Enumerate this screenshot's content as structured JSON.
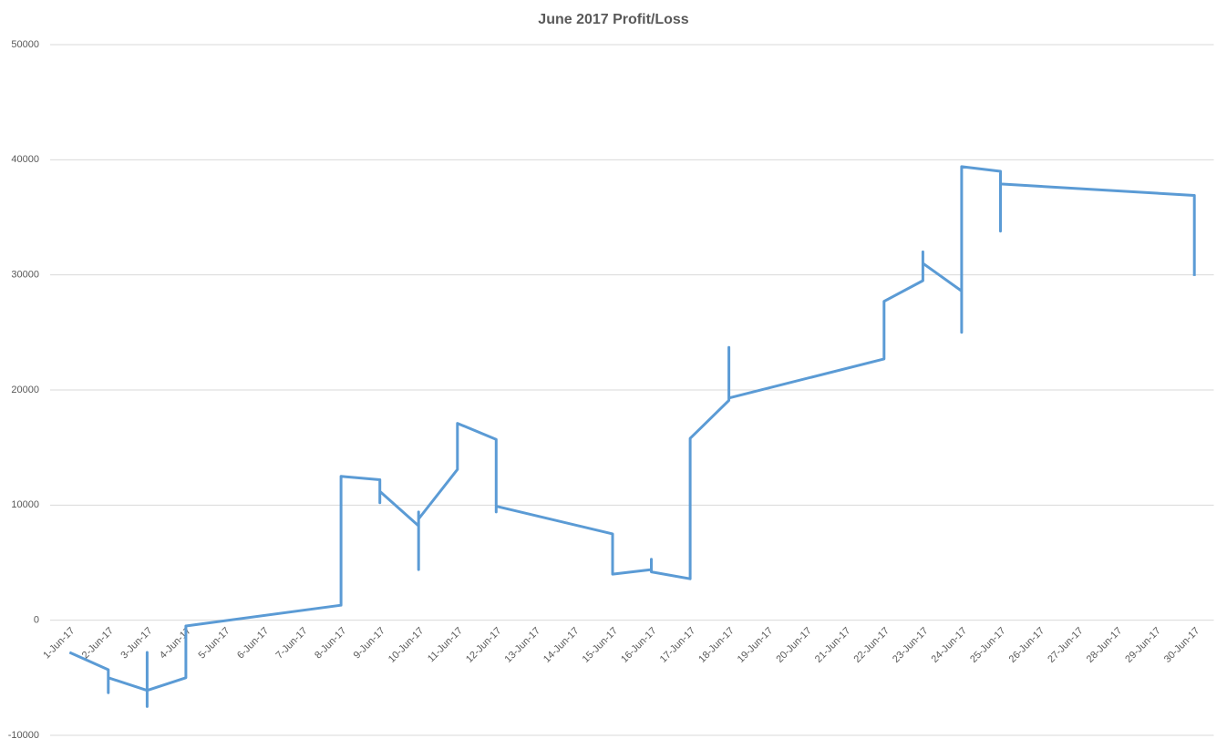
{
  "chart_data": {
    "type": "line",
    "title": "June 2017 Profit/Loss",
    "categories": [
      "1-Jun-17",
      "2-Jun-17",
      "3-Jun-17",
      "4-Jun-17",
      "5-Jun-17",
      "6-Jun-17",
      "7-Jun-17",
      "8-Jun-17",
      "9-Jun-17",
      "10-Jun-17",
      "11-Jun-17",
      "12-Jun-17",
      "13-Jun-17",
      "14-Jun-17",
      "15-Jun-17",
      "16-Jun-17",
      "17-Jun-17",
      "18-Jun-17",
      "19-Jun-17",
      "20-Jun-17",
      "21-Jun-17",
      "22-Jun-17",
      "23-Jun-17",
      "24-Jun-17",
      "25-Jun-17",
      "26-Jun-17",
      "27-Jun-17",
      "28-Jun-17",
      "29-Jun-17",
      "30-Jun-17"
    ],
    "x": [
      "1-Jun-17",
      "2-Jun-17",
      "2-Jun-17",
      "2-Jun-17",
      "3-Jun-17",
      "3-Jun-17",
      "3-Jun-17",
      "3-Jun-17",
      "4-Jun-17",
      "4-Jun-17",
      "8-Jun-17",
      "8-Jun-17",
      "9-Jun-17",
      "9-Jun-17",
      "9-Jun-17",
      "10-Jun-17",
      "10-Jun-17",
      "10-Jun-17",
      "10-Jun-17",
      "11-Jun-17",
      "11-Jun-17",
      "12-Jun-17",
      "12-Jun-17",
      "12-Jun-17",
      "15-Jun-17",
      "15-Jun-17",
      "16-Jun-17",
      "16-Jun-17",
      "16-Jun-17",
      "17-Jun-17",
      "17-Jun-17",
      "18-Jun-17",
      "18-Jun-17",
      "18-Jun-17",
      "22-Jun-17",
      "22-Jun-17",
      "23-Jun-17",
      "23-Jun-17",
      "23-Jun-17",
      "24-Jun-17",
      "24-Jun-17",
      "24-Jun-17",
      "25-Jun-17",
      "25-Jun-17",
      "25-Jun-17",
      "30-Jun-17",
      "30-Jun-17"
    ],
    "values": [
      -2800,
      -4300,
      -6300,
      -5000,
      -6100,
      -2800,
      -7500,
      -6100,
      -5000,
      -500,
      1300,
      12500,
      12200,
      10200,
      11200,
      8200,
      9400,
      4400,
      8800,
      13100,
      17100,
      15700,
      9400,
      9900,
      7500,
      4000,
      4400,
      5300,
      4200,
      3600,
      15800,
      19100,
      23700,
      19300,
      22700,
      27700,
      29500,
      32000,
      31000,
      28600,
      25000,
      39400,
      39000,
      33800,
      37900,
      36900,
      29900
    ],
    "color": "#5b9bd5",
    "ylim": [
      -10000,
      50000
    ],
    "yticks": [
      -10000,
      0,
      10000,
      20000,
      30000,
      40000,
      50000
    ],
    "grid": true
  }
}
